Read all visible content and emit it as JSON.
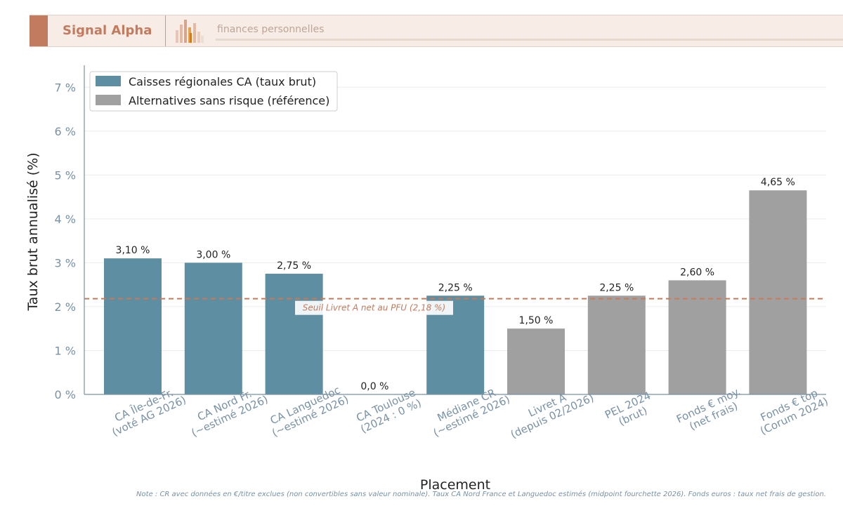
{
  "header": {
    "brand": "Signal Alpha",
    "tagline": "finances personnelles",
    "accent_color": "#c27b5e",
    "logo_icon": "bar-chart-logo-icon"
  },
  "chart_data": {
    "type": "bar",
    "categories": [
      [
        "CA Île-de-Fr.",
        "(voté AG 2026)"
      ],
      [
        "CA Nord Fr.",
        "(~estimé 2026)"
      ],
      [
        "CA Languedoc",
        "(~estimé 2026)"
      ],
      [
        "CA Toulouse",
        "(2024 : 0 %)"
      ],
      [
        "Médiane CR",
        "(~estimé 2026)"
      ],
      [
        "Livret A",
        "(depuis 02/2026)"
      ],
      [
        "PEL 2024",
        "(brut)"
      ],
      [
        "Fonds € moy.",
        "(net frais)"
      ],
      [
        "Fonds € top",
        "(Corum 2024)"
      ]
    ],
    "values": [
      3.1,
      3.0,
      2.75,
      0.0,
      2.25,
      1.5,
      2.25,
      2.6,
      4.65
    ],
    "value_labels": [
      "3,10 %",
      "3,00 %",
      "2,75 %",
      "0,0 %",
      "2,25 %",
      "1,50 %",
      "2,25 %",
      "2,60 %",
      "4,65 %"
    ],
    "groups": [
      0,
      0,
      0,
      0,
      0,
      1,
      1,
      1,
      1
    ],
    "series": [
      {
        "name": "Caisses régionales CA (taux brut)",
        "color": "#5e8ea1"
      },
      {
        "name": "Alternatives sans risque (référence)",
        "color": "#a0a0a0"
      }
    ],
    "xlabel": "Placement",
    "ylabel": "Taux brut annualisé (%)",
    "ylim": [
      0,
      7.5
    ],
    "yticks": [
      0,
      1,
      2,
      3,
      4,
      5,
      6,
      7
    ],
    "ytick_labels": [
      "0 %",
      "1 %",
      "2 %",
      "3 %",
      "4 %",
      "5 %",
      "6 %",
      "7 %"
    ],
    "grid": true,
    "legend_position": "top-left",
    "reference_line": {
      "value": 2.18,
      "label": "Seuil Livret A net au PFU (2,18 %)",
      "color": "#c27b5e",
      "style": "dashed"
    }
  },
  "note": "Note : CR avec données en €/titre exclues (non convertibles sans valeur nominale). Taux CA Nord France et Languedoc estimés (midpoint fourchette 2026). Fonds euros : taux net frais de gestion."
}
